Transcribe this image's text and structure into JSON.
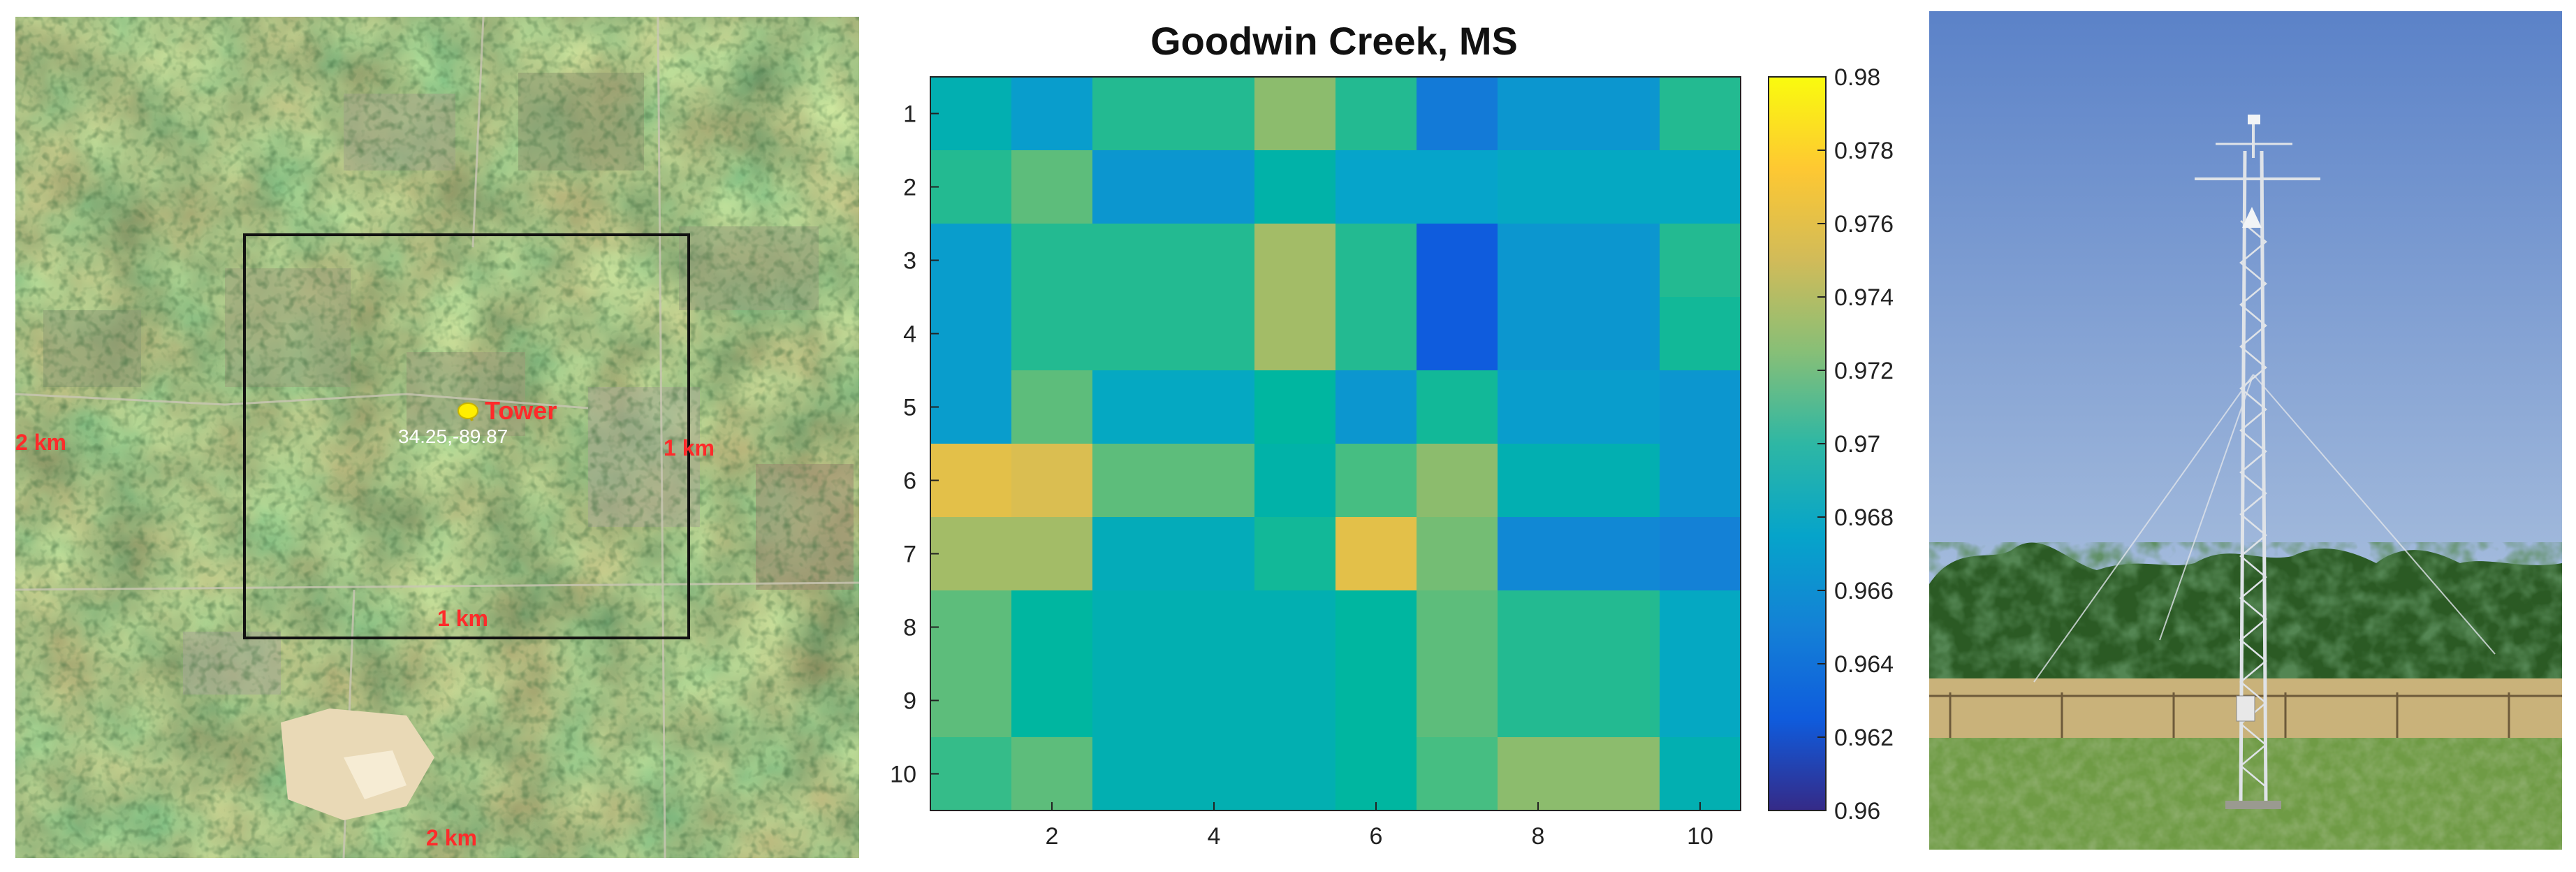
{
  "map": {
    "tower_label": "Tower",
    "coords": "34.25,-89.87",
    "outer_left_label": "2 km",
    "outer_bottom_label": "2 km",
    "inner_right_label": "1 km",
    "inner_bottom_label": "1 km",
    "box_color": "#111111",
    "label_color": "#ff2a2a",
    "marker_color": "#ffee00"
  },
  "chart_data": {
    "type": "heatmap",
    "title": "Goodwin Creek, MS",
    "x_ticks": [
      2,
      4,
      6,
      8,
      10
    ],
    "y_ticks": [
      1,
      2,
      3,
      4,
      5,
      6,
      7,
      8,
      9,
      10
    ],
    "colorbar": {
      "min": 0.96,
      "max": 0.98,
      "ticks": [
        "0.96",
        "0.962",
        "0.964",
        "0.966",
        "0.968",
        "0.97",
        "0.972",
        "0.974",
        "0.976",
        "0.978",
        "0.98"
      ],
      "colormap": "parula"
    },
    "values": [
      [
        0.969,
        0.967,
        0.971,
        0.971,
        0.9735,
        0.971,
        0.9645,
        0.9665,
        0.9665,
        0.971
      ],
      [
        0.971,
        0.9725,
        0.9665,
        0.9665,
        0.9695,
        0.9675,
        0.9675,
        0.968,
        0.968,
        0.968
      ],
      [
        0.967,
        0.971,
        0.971,
        0.971,
        0.974,
        0.971,
        0.9625,
        0.9665,
        0.9665,
        0.971
      ],
      [
        0.967,
        0.971,
        0.971,
        0.971,
        0.974,
        0.971,
        0.9625,
        0.9665,
        0.9665,
        0.9705
      ],
      [
        0.967,
        0.9725,
        0.968,
        0.968,
        0.97,
        0.9665,
        0.9705,
        0.967,
        0.967,
        0.9665
      ],
      [
        0.976,
        0.9755,
        0.9725,
        0.9725,
        0.9695,
        0.972,
        0.9735,
        0.969,
        0.969,
        0.9665
      ],
      [
        0.974,
        0.974,
        0.9685,
        0.9685,
        0.9705,
        0.976,
        0.973,
        0.9655,
        0.9655,
        0.965
      ],
      [
        0.9725,
        0.97,
        0.969,
        0.969,
        0.969,
        0.97,
        0.9725,
        0.971,
        0.971,
        0.968
      ],
      [
        0.9725,
        0.97,
        0.969,
        0.969,
        0.969,
        0.97,
        0.9725,
        0.971,
        0.971,
        0.968
      ],
      [
        0.9715,
        0.9725,
        0.969,
        0.969,
        0.969,
        0.97,
        0.972,
        0.9735,
        0.9735,
        0.969
      ]
    ]
  },
  "photo": {
    "sky_top": "#5b82c8",
    "sky_bottom": "#c6d6e6",
    "grass_color": "#6f9b45",
    "tree_color": "#1f4a1c",
    "dry_grass_color": "#c9b27a"
  }
}
